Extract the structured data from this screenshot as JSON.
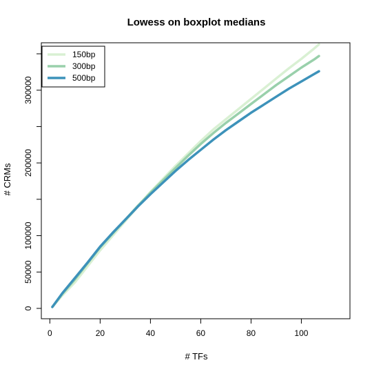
{
  "chart_data": {
    "type": "line",
    "title": "Lowess on boxplot medians",
    "xlabel": "# TFs",
    "ylabel": "# CRMs",
    "xlim": [
      1,
      107
    ],
    "ylim": [
      0,
      350000
    ],
    "x_ticks": [
      0,
      20,
      40,
      60,
      80,
      100
    ],
    "x_tick_labels": [
      "0",
      "20",
      "40",
      "60",
      "80",
      "100"
    ],
    "y_ticks": [
      0,
      50000,
      100000,
      150000,
      200000,
      250000,
      300000,
      350000
    ],
    "y_tick_labels": [
      "0",
      "50000",
      "100000",
      "",
      "200000",
      "",
      "300000",
      ""
    ],
    "grid": false,
    "legend_position": "top-left",
    "series": [
      {
        "name": "150bp",
        "color": "#d9f0d3",
        "x": [
          1,
          5,
          10,
          15,
          20,
          25,
          30,
          35,
          40,
          45,
          50,
          55,
          60,
          65,
          70,
          75,
          80,
          85,
          90,
          95,
          100,
          105,
          107
        ],
        "y": [
          2000,
          18000,
          36000,
          58000,
          80000,
          100000,
          120000,
          140000,
          160000,
          178000,
          196000,
          213000,
          230000,
          246000,
          260000,
          274000,
          288000,
          302000,
          316000,
          330000,
          343000,
          357000,
          363000
        ]
      },
      {
        "name": "300bp",
        "color": "#99d0ab",
        "x": [
          1,
          5,
          10,
          15,
          20,
          25,
          30,
          35,
          40,
          45,
          50,
          55,
          60,
          65,
          70,
          75,
          80,
          85,
          90,
          95,
          100,
          105,
          107
        ],
        "y": [
          2000,
          20000,
          40000,
          62000,
          84000,
          103000,
          122000,
          141000,
          159000,
          176000,
          193000,
          210000,
          226000,
          241000,
          255000,
          268000,
          281000,
          294000,
          307000,
          319000,
          331000,
          342000,
          347000
        ]
      },
      {
        "name": "500bp",
        "color": "#3d92ba",
        "x": [
          1,
          5,
          10,
          15,
          20,
          25,
          30,
          35,
          40,
          45,
          50,
          55,
          60,
          65,
          70,
          75,
          80,
          85,
          90,
          95,
          100,
          105,
          107
        ],
        "y": [
          2000,
          21000,
          42000,
          63000,
          85000,
          104000,
          122000,
          140000,
          157000,
          173000,
          189000,
          204000,
          218000,
          232000,
          245000,
          257000,
          269000,
          280000,
          291000,
          302000,
          312000,
          322000,
          326000
        ]
      }
    ]
  }
}
